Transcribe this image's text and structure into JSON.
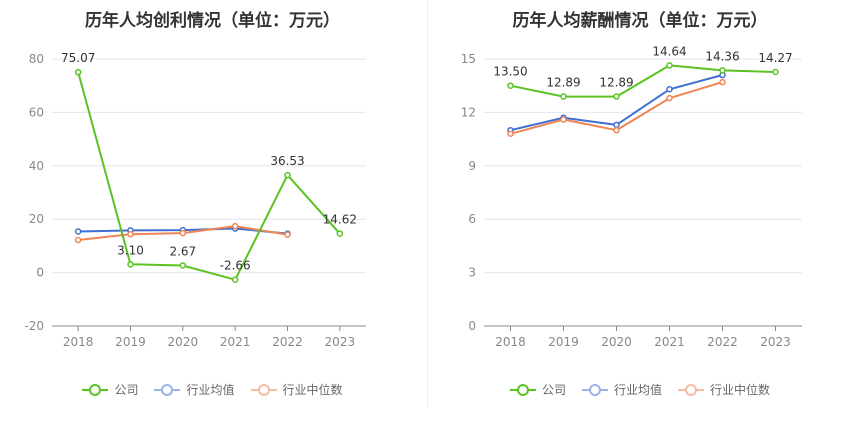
{
  "charts": [
    {
      "chart_data": {
        "type": "line",
        "title": "历年人均创利情况（单位：万元）",
        "categories": [
          "2018",
          "2019",
          "2020",
          "2021",
          "2022",
          "2023"
        ],
        "ylim": [
          -20,
          80
        ],
        "yticks": [
          -20,
          0,
          20,
          40,
          60,
          80
        ],
        "grid": true,
        "legend_position": "bottom",
        "series": [
          {
            "name": "公司",
            "color": "#5ac322",
            "values": [
              75.07,
              3.1,
              2.67,
              -2.66,
              36.53,
              14.62
            ],
            "labels": [
              "75.07",
              "3.10",
              "2.67",
              "-2.66",
              "36.53",
              "14.62"
            ]
          },
          {
            "name": "行业均值",
            "color": "#3f6fd0",
            "values": [
              15.4,
              15.8,
              15.9,
              16.5,
              14.6,
              null
            ]
          },
          {
            "name": "行业中位数",
            "color": "#ef8454",
            "values": [
              12.2,
              14.4,
              14.8,
              17.4,
              14.2,
              null
            ]
          }
        ]
      }
    },
    {
      "chart_data": {
        "type": "line",
        "title": "历年人均薪酬情况（单位：万元）",
        "categories": [
          "2018",
          "2019",
          "2020",
          "2021",
          "2022",
          "2023"
        ],
        "ylim": [
          0,
          15
        ],
        "yticks": [
          0,
          3,
          6,
          9,
          12,
          15
        ],
        "grid": true,
        "legend_position": "bottom",
        "series": [
          {
            "name": "公司",
            "color": "#5ac322",
            "values": [
              13.5,
              12.89,
              12.89,
              14.64,
              14.36,
              14.27
            ],
            "labels": [
              "13.50",
              "12.89",
              "12.89",
              "14.64",
              "14.36",
              "14.27"
            ]
          },
          {
            "name": "行业均值",
            "color": "#3f6fd0",
            "values": [
              11.0,
              11.7,
              11.3,
              13.3,
              14.1,
              null
            ]
          },
          {
            "name": "行业中位数",
            "color": "#ef8454",
            "values": [
              10.8,
              11.6,
              11.0,
              12.8,
              13.7,
              null
            ]
          }
        ]
      }
    }
  ]
}
